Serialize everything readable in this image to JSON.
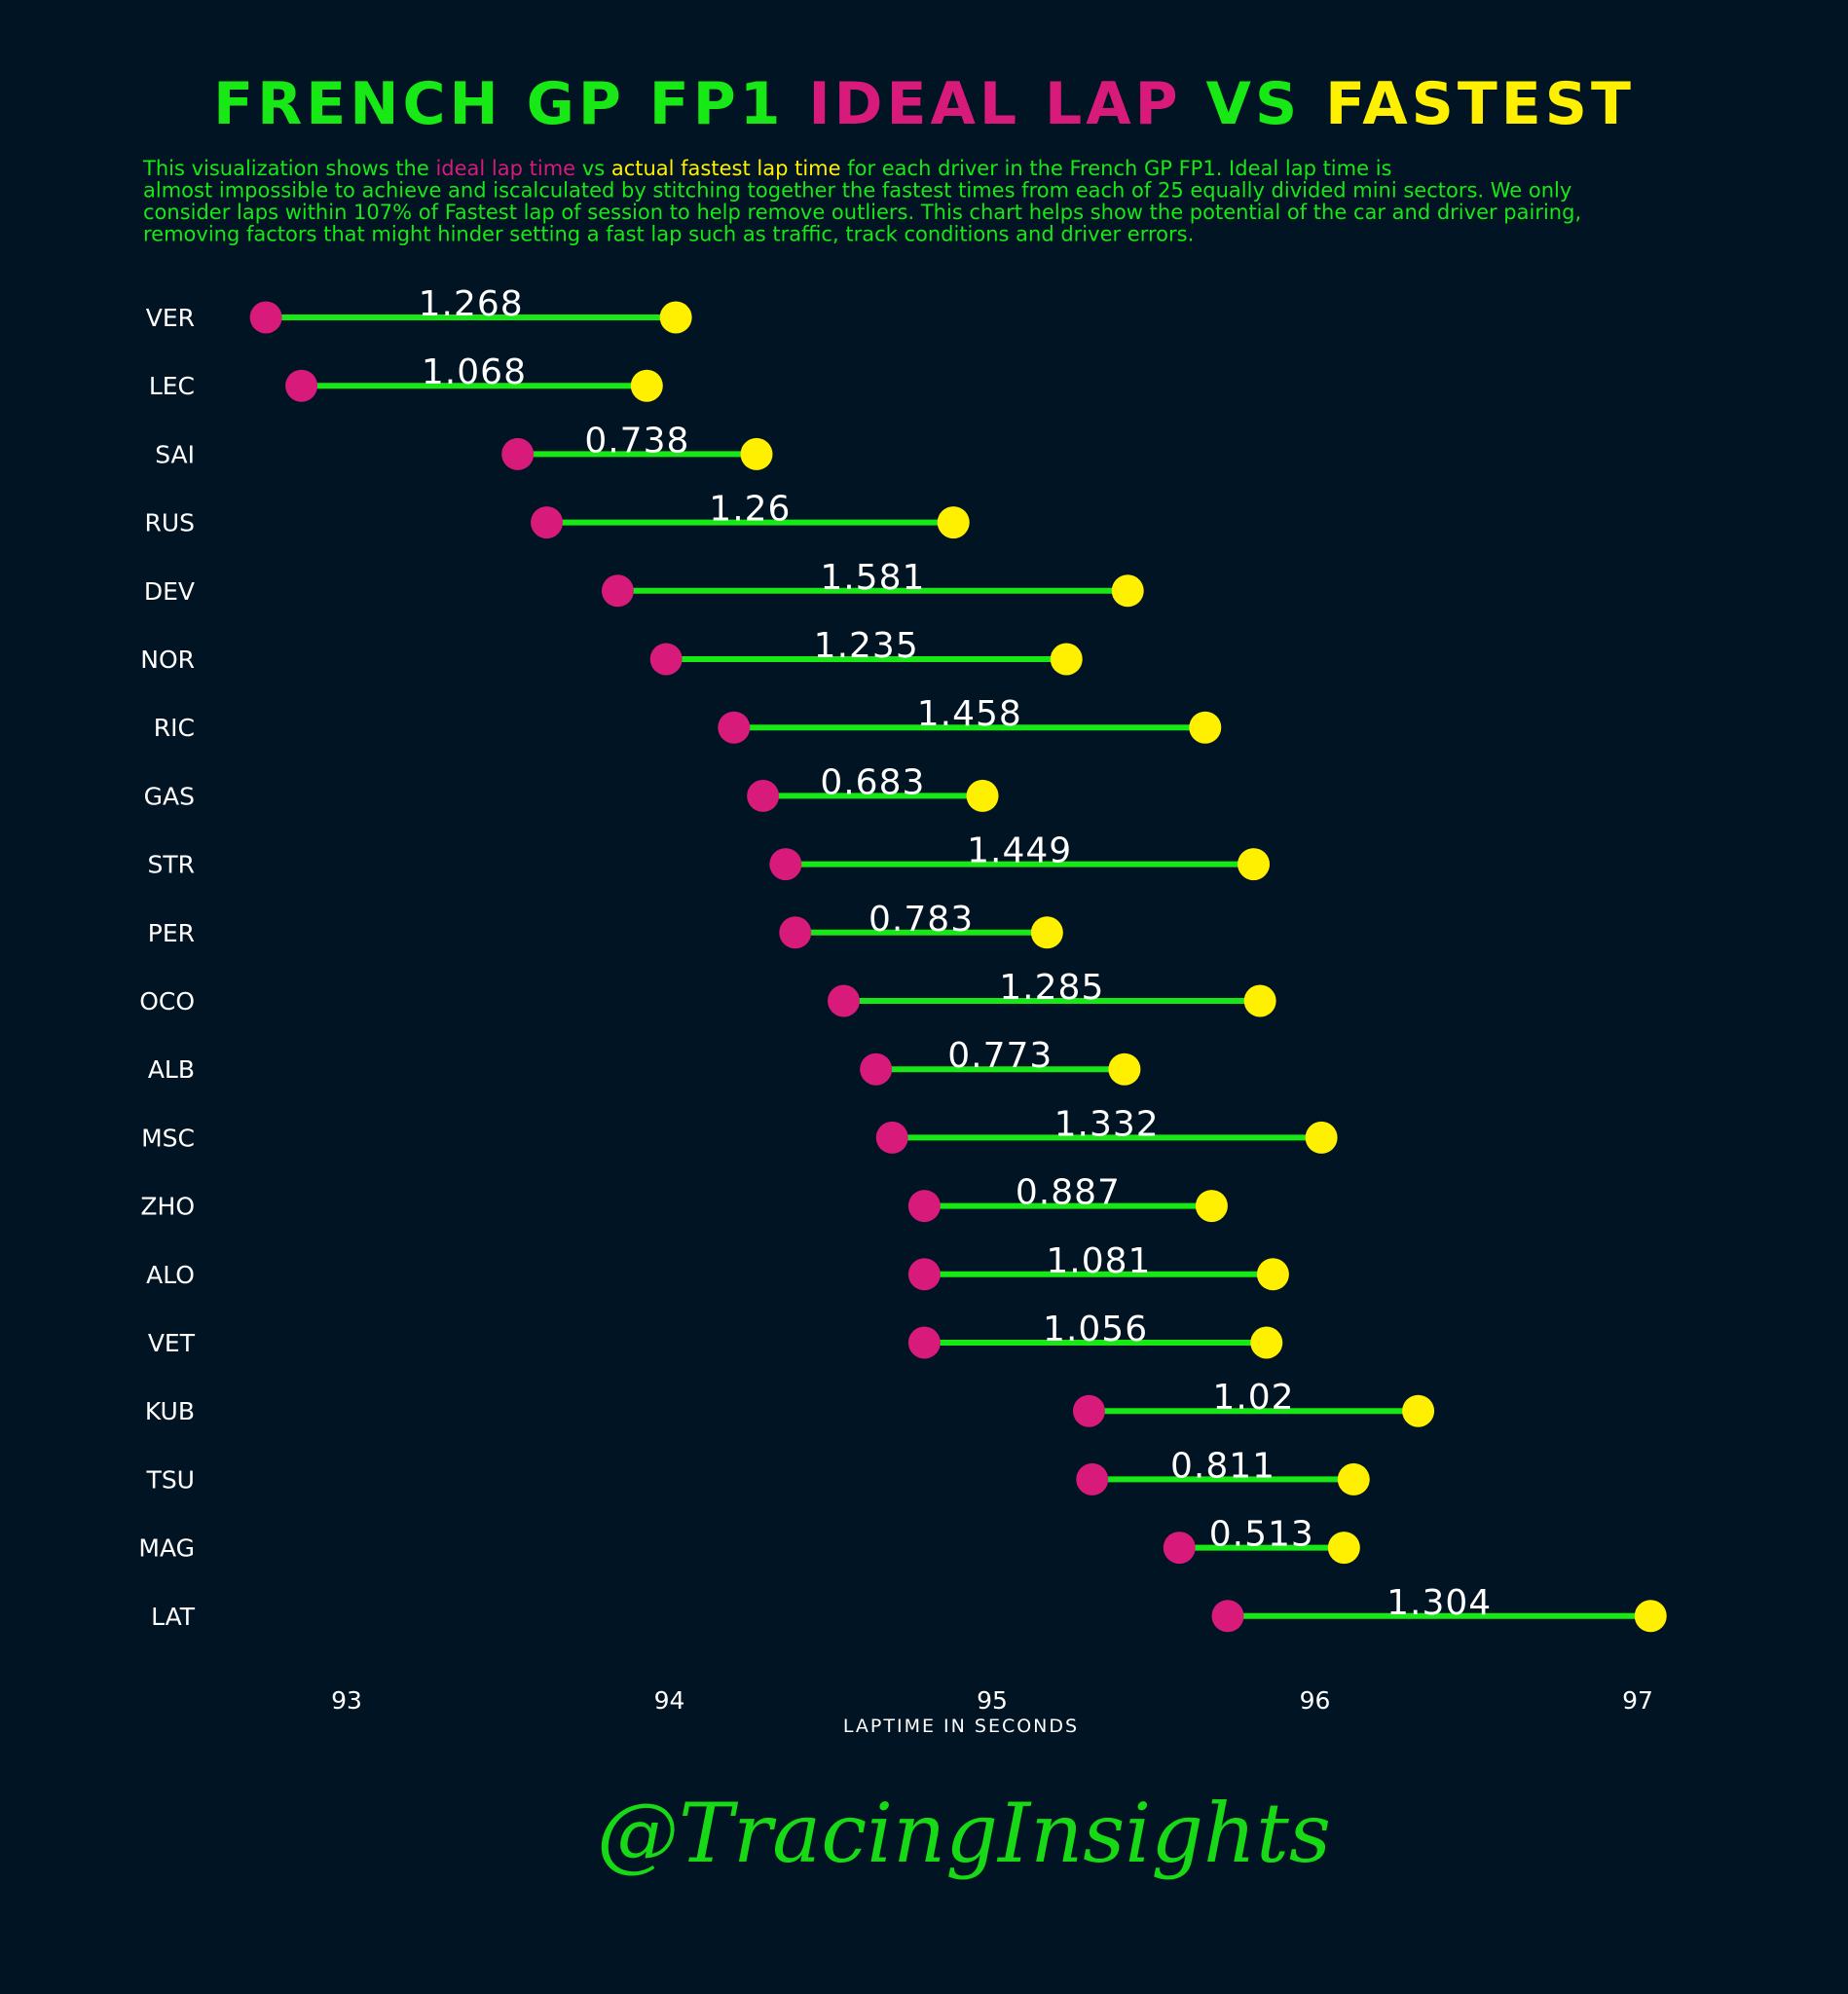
{
  "title": {
    "part1": "FRENCH GP FP1 ",
    "part2": "IDEAL LAP",
    "part3": " VS ",
    "part4": "FASTEST"
  },
  "description": [
    [
      {
        "text": "This visualization shows the ",
        "color": "green"
      },
      {
        "text": "ideal lap time",
        "color": "pink"
      },
      {
        "text": " vs ",
        "color": "green"
      },
      {
        "text": "actual fastest lap time",
        "color": "yellow"
      },
      {
        "text": " for each driver in the French GP FP1. Ideal lap time is",
        "color": "green"
      }
    ],
    [
      {
        "text": "almost impossible to achieve and iscalculated by stitching together the fastest times from each of 25 equally divided mini sectors. We only",
        "color": "green"
      }
    ],
    [
      {
        "text": "consider laps within 107% of Fastest lap of session to help remove outliers. This chart helps show the potential of the car and driver pairing,",
        "color": "green"
      }
    ],
    [
      {
        "text": "removing factors that might hinder setting a fast lap such as traffic, track conditions and driver errors.",
        "color": "green"
      }
    ]
  ],
  "colors": {
    "background": "#011423",
    "green": "#17e816",
    "pink": "#d81a7a",
    "yellow": "#fff000",
    "white": "#ffffff"
  },
  "watermark": "@TracingInsights",
  "chart_data": {
    "type": "dumbbell",
    "xlabel": "LAPTIME IN SECONDS",
    "xlim": [
      92.5,
      97.2
    ],
    "xticks": [
      93,
      94,
      95,
      96,
      97
    ],
    "drivers": [
      "VER",
      "LEC",
      "SAI",
      "RUS",
      "DEV",
      "NOR",
      "RIC",
      "GAS",
      "STR",
      "PER",
      "OCO",
      "ALB",
      "MSC",
      "ZHO",
      "ALO",
      "VET",
      "KUB",
      "TSU",
      "MAG",
      "LAT"
    ],
    "ideal": [
      92.75,
      92.86,
      93.53,
      93.62,
      93.84,
      93.99,
      94.2,
      94.29,
      94.36,
      94.39,
      94.54,
      94.64,
      94.69,
      94.79,
      94.79,
      94.79,
      95.3,
      95.31,
      95.58,
      95.73
    ],
    "fastest": [
      94.02,
      93.93,
      94.27,
      94.88,
      95.42,
      95.23,
      95.66,
      94.97,
      95.81,
      95.17,
      95.83,
      95.41,
      96.02,
      95.68,
      95.87,
      95.85,
      96.32,
      96.12,
      96.09,
      97.04
    ],
    "gap_labels": [
      "1.268",
      "1.068",
      "0.738",
      "1.26",
      "1.581",
      "1.235",
      "1.458",
      "0.683",
      "1.449",
      "0.783",
      "1.285",
      "0.773",
      "1.332",
      "0.887",
      "1.081",
      "1.056",
      "1.02",
      "0.811",
      "0.513",
      "1.304"
    ],
    "series": [
      {
        "values_key": "ideal"
      },
      {
        "values_key": "fastest"
      }
    ]
  }
}
